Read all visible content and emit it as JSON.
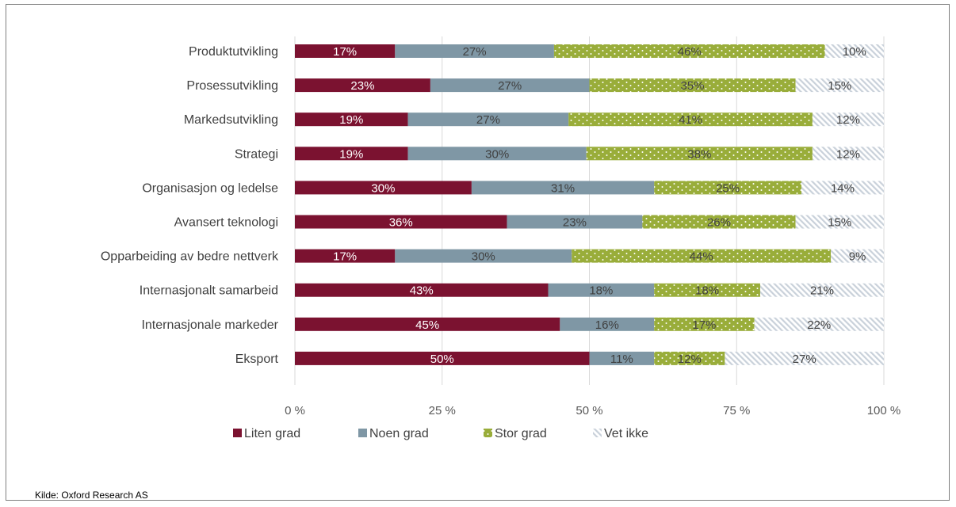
{
  "chart_data": {
    "type": "bar",
    "orientation": "horizontal",
    "stacked": "percent",
    "categories": [
      "Produktutvikling",
      "Prosessutvikling",
      "Markedsutvikling",
      "Strategi",
      "Organisasjon og ledelse",
      "Avansert teknologi",
      "Opparbeiding av bedre nettverk",
      "Internasjonalt samarbeid",
      "Internasjonale markeder",
      "Eksport"
    ],
    "series": [
      {
        "name": "Liten grad",
        "color": "#7b1230",
        "pattern": "solid",
        "values": [
          17,
          23,
          19,
          19,
          30,
          36,
          17,
          43,
          45,
          50
        ]
      },
      {
        "name": "Noen grad",
        "color": "#7f97a5",
        "pattern": "solid",
        "values": [
          27,
          27,
          27,
          30,
          31,
          23,
          30,
          18,
          16,
          11
        ]
      },
      {
        "name": "Stor grad",
        "color": "#99ad3a",
        "pattern": "dotted",
        "values": [
          46,
          35,
          41,
          38,
          25,
          26,
          44,
          18,
          17,
          12
        ]
      },
      {
        "name": "Vet ikke",
        "color": "#d0d7df",
        "pattern": "hatched",
        "values": [
          10,
          15,
          12,
          12,
          14,
          15,
          9,
          21,
          22,
          27
        ]
      }
    ],
    "xlim": [
      0,
      100
    ],
    "xticks": [
      0,
      25,
      50,
      75,
      100
    ],
    "xtick_labels": [
      "0 %",
      "25 %",
      "50 %",
      "75 %",
      "100 %"
    ],
    "grid": "vertical",
    "legend_position": "bottom-left",
    "data_label_suffix": "%"
  },
  "source": "Kilde: Oxford Research AS"
}
